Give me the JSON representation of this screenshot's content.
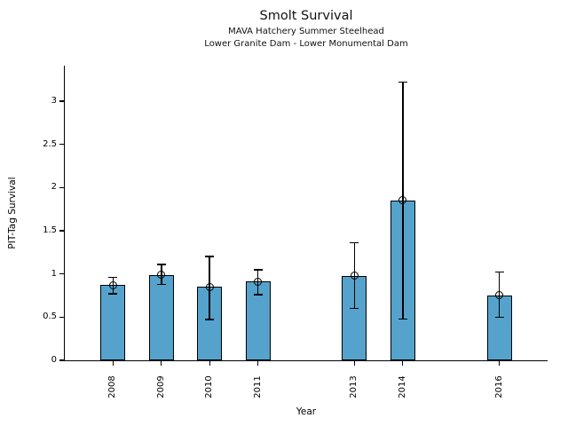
{
  "chart_data": {
    "type": "bar",
    "title": "Smolt Survival",
    "subtitle": [
      "MAVA Hatchery Summer Steelhead",
      "Lower Granite Dam - Lower Monumental Dam"
    ],
    "xlabel": "Year",
    "ylabel": "PIT-Tag Survival",
    "categories": [
      "2008",
      "2009",
      "2010",
      "2011",
      "2013",
      "2014",
      "2016"
    ],
    "x_numeric": [
      2008,
      2009,
      2010,
      2011,
      2013,
      2014,
      2016
    ],
    "values": [
      0.87,
      0.99,
      0.85,
      0.91,
      0.98,
      1.85,
      0.75
    ],
    "error_low": [
      0.77,
      0.88,
      0.47,
      0.76,
      0.6,
      0.48,
      0.5
    ],
    "error_high": [
      0.96,
      1.11,
      1.2,
      1.05,
      1.36,
      3.22,
      1.02
    ],
    "yticks": [
      0,
      0.5,
      1,
      1.5,
      2,
      2.5,
      3
    ],
    "ytick_labels": [
      "0",
      "0.5",
      "1",
      "1.5",
      "2",
      "2.5",
      "3"
    ],
    "ylim": [
      0,
      3.41
    ],
    "xlim": [
      2007,
      2017
    ],
    "grid": false,
    "legend": null,
    "bar_color": "#55a3cd",
    "bar_edge_color": "#000000",
    "error_color": "#000000",
    "marker": "open-circle"
  }
}
